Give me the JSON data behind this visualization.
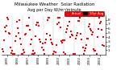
{
  "title": "Milwaukee Weather  Solar Radiation",
  "subtitle": "Avg per Day W/m²/minute",
  "title_fontsize": 4.0,
  "background_color": "#ffffff",
  "plot_bg_color": "#ffffff",
  "y_min": 0,
  "y_max": 9,
  "y_ticks": [
    1,
    2,
    3,
    4,
    5,
    6,
    7,
    8
  ],
  "y_tick_fontsize": 3.2,
  "x_tick_fontsize": 2.8,
  "legend_label1": "Actual",
  "legend_label2": "10yr Avg",
  "legend_color1": "#ff0000",
  "legend_color2": "#000000",
  "grid_color": "#999999",
  "marker_size": 0.6,
  "n_years": 10,
  "start_year": 1995,
  "seed": 42
}
